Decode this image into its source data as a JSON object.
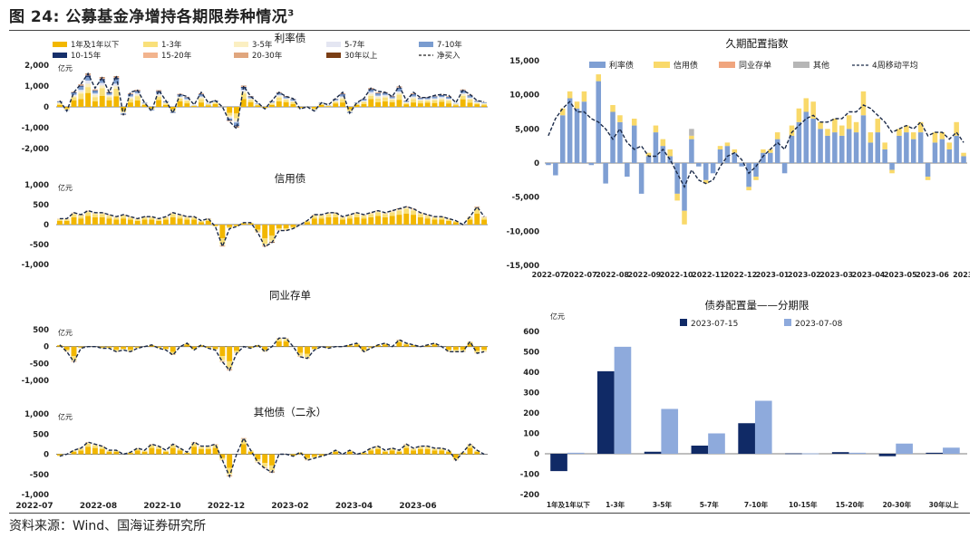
{
  "header": {
    "figure_label": "图 24:",
    "title": "公募基金净增持各期限券种情况",
    "footnote_mark": "3"
  },
  "source": "资料来源：Wind、国海证券研究所",
  "colors": {
    "y_lt1": "#F2B700",
    "y1_3": "#F9E07A",
    "y3_5": "#FBEFC2",
    "y5_7": "#E4E6F2",
    "y7_10": "#7A9CCF",
    "y10_15": "#17306B",
    "y15_20": "#F2B48E",
    "y20_30": "#E0A67E",
    "y30p": "#7A3E15",
    "rate": "#7F9FD3",
    "credit": "#F9D96A",
    "ncd": "#F0A57E",
    "other": "#B6B6B6",
    "navy": "#102A66",
    "lightblue": "#8EAADC"
  },
  "left_x_ticks": [
    "2022-07",
    "2022-08",
    "2022-10",
    "2022-12",
    "2023-02",
    "2023-04",
    "2023-06"
  ],
  "chart_data": [
    {
      "type": "bar",
      "title": "利率债",
      "unit": "亿元",
      "ylim": [
        -2000,
        2000
      ],
      "yticks": [
        "2,000",
        "1,000",
        "0",
        "-1,000",
        "-2,000"
      ],
      "legend": [
        "1年及1年以下",
        "1-3年",
        "3-5年",
        "5-7年",
        "7-10年",
        "10-15年",
        "15-20年",
        "20-30年",
        "30年以上",
        "净买入"
      ],
      "net": [
        300,
        -200,
        700,
        1100,
        1600,
        900,
        1400,
        700,
        1500,
        -400,
        700,
        800,
        200,
        -200,
        800,
        300,
        -300,
        600,
        500,
        100,
        700,
        200,
        300,
        0,
        -700,
        -1050,
        1000,
        500,
        200,
        -100,
        300,
        700,
        500,
        400,
        -100,
        0,
        -200,
        200,
        100,
        400,
        700,
        -300,
        200,
        400,
        900,
        750,
        700,
        500,
        1000,
        300,
        700,
        450,
        450,
        550,
        600,
        550,
        200,
        800,
        600,
        300,
        250
      ]
    },
    {
      "type": "bar",
      "title": "信用债",
      "unit": "亿元",
      "ylim": [
        -1000,
        1000
      ],
      "yticks": [
        "1,000",
        "500",
        "0",
        "-500",
        "-1,000"
      ],
      "net": [
        150,
        150,
        300,
        250,
        350,
        300,
        300,
        250,
        200,
        250,
        200,
        150,
        200,
        200,
        150,
        200,
        300,
        250,
        200,
        200,
        100,
        150,
        -50,
        -550,
        -100,
        -50,
        50,
        50,
        -200,
        -550,
        -450,
        -150,
        -150,
        -100,
        0,
        100,
        250,
        250,
        300,
        300,
        200,
        250,
        300,
        250,
        300,
        350,
        300,
        350,
        400,
        450,
        400,
        300,
        250,
        200,
        200,
        150,
        100,
        0,
        200,
        450,
        200
      ]
    },
    {
      "type": "bar",
      "title": "同业存单",
      "unit": "亿元",
      "ylim": [
        -1000,
        500
      ],
      "yticks": [
        "500",
        "0",
        "-500",
        "-1,000"
      ],
      "net": [
        50,
        -150,
        -450,
        -50,
        0,
        0,
        -50,
        -50,
        -150,
        -100,
        -150,
        -50,
        0,
        50,
        -50,
        -100,
        -250,
        0,
        100,
        -100,
        50,
        -50,
        -100,
        -450,
        -700,
        -200,
        0,
        -50,
        50,
        -150,
        0,
        250,
        250,
        0,
        -300,
        -350,
        -100,
        0,
        -50,
        0,
        0,
        50,
        100,
        -150,
        -50,
        50,
        100,
        0,
        200,
        100,
        50,
        0,
        50,
        100,
        0,
        -150,
        -150,
        -150,
        150,
        -200,
        -150
      ]
    },
    {
      "type": "bar",
      "title": "其他债（二永）",
      "unit": "亿元",
      "ylim": [
        -1000,
        1000
      ],
      "yticks": [
        "1,000",
        "500",
        "0",
        "-500",
        "-1,000"
      ],
      "net": [
        -50,
        0,
        100,
        150,
        300,
        250,
        200,
        100,
        100,
        0,
        50,
        150,
        100,
        250,
        200,
        100,
        250,
        150,
        50,
        300,
        200,
        200,
        250,
        -150,
        -550,
        0,
        400,
        100,
        -200,
        -350,
        -450,
        0,
        0,
        -50,
        50,
        -150,
        -100,
        -50,
        0,
        100,
        0,
        100,
        0,
        50,
        150,
        200,
        100,
        150,
        100,
        250,
        150,
        200,
        200,
        150,
        150,
        100,
        -150,
        50,
        250,
        100,
        0
      ]
    },
    {
      "type": "bar",
      "title": "久期配置指数",
      "ylim": [
        -15000,
        15000
      ],
      "yticks": [
        "15,000",
        "10,000",
        "5,000",
        "0",
        "-5,000",
        "-10,000",
        "-15,000"
      ],
      "legend": [
        "利率债",
        "信用债",
        "同业存单",
        "其他",
        "4周移动平均"
      ],
      "xticks": [
        "2022-07",
        "2022-07",
        "2022-08",
        "2022-09",
        "2022-10",
        "2022-11",
        "2022-12",
        "2023-01",
        "2023-02",
        "2023-03",
        "2023-04",
        "2023-05",
        "2023-06",
        "2023-"
      ],
      "rate": [
        -300,
        -1800,
        7000,
        9500,
        8000,
        9000,
        -300,
        12000,
        -3000,
        7500,
        6000,
        -2000,
        5500,
        -4500,
        1000,
        4500,
        2500,
        1000,
        -4500,
        -7000,
        3500,
        -500,
        -2500,
        -1500,
        2000,
        2500,
        1500,
        -500,
        -3500,
        -2000,
        1500,
        1500,
        3500,
        -1500,
        4000,
        6000,
        7500,
        6500,
        5000,
        4000,
        4500,
        4000,
        5000,
        4500,
        7000,
        3000,
        4500,
        2000,
        -1000,
        4000,
        4500,
        3500,
        4500,
        -2000,
        3000,
        3500,
        2000,
        4000,
        1000
      ],
      "credit": [
        0,
        0,
        1000,
        1000,
        1000,
        1500,
        0,
        1000,
        0,
        1000,
        1000,
        0,
        1000,
        0,
        500,
        1000,
        1000,
        1000,
        -1000,
        -2000,
        500,
        0,
        -500,
        0,
        500,
        500,
        500,
        0,
        -500,
        -500,
        500,
        500,
        1000,
        0,
        1500,
        2000,
        2000,
        2500,
        1000,
        1000,
        2000,
        1500,
        2000,
        1500,
        3500,
        1500,
        2000,
        1000,
        -500,
        1000,
        1000,
        1000,
        1500,
        -500,
        1500,
        1000,
        1000,
        2000,
        500
      ],
      "other": [
        0,
        0,
        0,
        0,
        0,
        0,
        0,
        0,
        0,
        0,
        0,
        0,
        0,
        0,
        0,
        0,
        0,
        0,
        0,
        0,
        1000,
        0,
        0,
        0,
        0,
        0,
        0,
        0,
        0,
        0,
        0,
        0,
        0,
        0,
        0,
        0,
        0,
        0,
        0,
        0,
        0,
        0,
        0,
        0,
        0,
        0,
        0,
        0,
        0,
        0,
        0,
        0,
        0,
        0,
        0,
        0,
        0,
        0,
        0
      ],
      "ma4": [
        4000,
        6500,
        8000,
        9000,
        7500,
        7500,
        6500,
        6000,
        5000,
        3500,
        5000,
        3000,
        2000,
        2500,
        1000,
        1000,
        2000,
        500,
        -1500,
        -3500,
        -1000,
        -2500,
        -3000,
        -2500,
        -500,
        1000,
        1500,
        500,
        -1500,
        -500,
        1000,
        2000,
        3000,
        2000,
        4500,
        5500,
        6500,
        7000,
        6000,
        6000,
        6500,
        6500,
        7500,
        7500,
        8500,
        8000,
        7000,
        6000,
        4500,
        5000,
        5500,
        5000,
        6000,
        4000,
        4500,
        4500,
        3500,
        4500,
        3000
      ]
    },
    {
      "type": "bar",
      "title": "债券配置量——分期限",
      "unit": "亿元",
      "ylim": [
        -200,
        600
      ],
      "yticks": [
        "600",
        "500",
        "400",
        "300",
        "200",
        "100",
        "0",
        "-100",
        "-200"
      ],
      "categories": [
        "1年及1年以下",
        "1-3年",
        "3-5年",
        "5-7年",
        "7-10年",
        "10-15年",
        "15-20年",
        "20-30年",
        "30年以上"
      ],
      "series": [
        {
          "name": "2023-07-15",
          "values": [
            -85,
            405,
            10,
            40,
            150,
            2,
            8,
            -12,
            5
          ]
        },
        {
          "name": "2023-07-08",
          "values": [
            5,
            525,
            220,
            100,
            260,
            2,
            5,
            50,
            30
          ]
        }
      ]
    }
  ]
}
